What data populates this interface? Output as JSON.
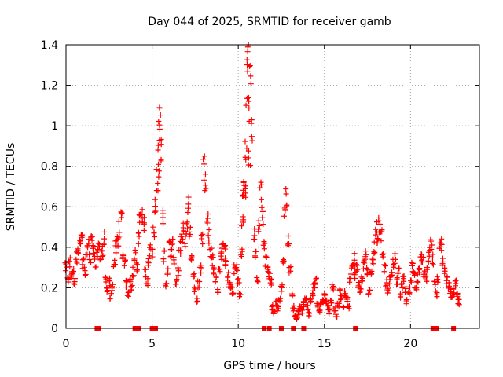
{
  "chart_data": {
    "type": "scatter",
    "title": "Day 044 of 2025, SRMTID for receiver gamb",
    "xlabel": "GPS time / hours",
    "ylabel": "SRMTID / TECUs",
    "xlim": [
      0,
      24
    ],
    "ylim": [
      0,
      1.4
    ],
    "xticks": [
      0,
      5,
      10,
      15,
      20
    ],
    "xtick_labels": [
      "0",
      "5",
      "10",
      "15",
      "20"
    ],
    "yticks": [
      0,
      0.2,
      0.4,
      0.6,
      0.8,
      1.0,
      1.2,
      1.4
    ],
    "ytick_labels": [
      "0",
      "0.2",
      "0.4",
      "0.6",
      "0.8",
      "1",
      "1.2",
      "1.4"
    ],
    "grid": true,
    "marker": "+",
    "color": "#ff0000",
    "series": [
      {
        "name": "SRMTID",
        "x": [
          0.0,
          0.1,
          0.2,
          0.3,
          0.4,
          0.5,
          0.6,
          0.7,
          0.8,
          0.9,
          1.0,
          1.1,
          1.2,
          1.3,
          1.4,
          1.5,
          1.6,
          1.7,
          1.8,
          1.9,
          2.0,
          2.1,
          2.2,
          2.3,
          2.4,
          2.5,
          2.6,
          2.7,
          2.8,
          2.9,
          3.0,
          3.1,
          3.2,
          3.3,
          3.4,
          3.5,
          3.6,
          3.7,
          3.8,
          3.9,
          4.0,
          4.1,
          4.2,
          4.3,
          4.4,
          4.5,
          4.6,
          4.7,
          4.8,
          4.9,
          5.0,
          5.1,
          5.2,
          5.3,
          5.35,
          5.4,
          5.45,
          5.5,
          5.6,
          5.7,
          5.8,
          5.9,
          6.0,
          6.1,
          6.2,
          6.3,
          6.4,
          6.5,
          6.6,
          6.7,
          6.8,
          6.9,
          7.0,
          7.1,
          7.2,
          7.3,
          7.4,
          7.5,
          7.6,
          7.7,
          7.8,
          7.9,
          8.0,
          8.1,
          8.2,
          8.3,
          8.4,
          8.5,
          8.6,
          8.7,
          8.8,
          8.9,
          9.0,
          9.1,
          9.2,
          9.3,
          9.4,
          9.5,
          9.6,
          9.7,
          9.8,
          9.9,
          10.0,
          10.1,
          10.2,
          10.25,
          10.3,
          10.35,
          10.4,
          10.45,
          10.5,
          10.55,
          10.6,
          10.65,
          10.7,
          10.8,
          10.9,
          11.0,
          11.1,
          11.2,
          11.3,
          11.4,
          11.5,
          11.6,
          11.7,
          11.8,
          11.9,
          12.0,
          12.1,
          12.2,
          12.3,
          12.4,
          12.5,
          12.6,
          12.7,
          12.8,
          12.9,
          13.0,
          13.1,
          13.2,
          13.3,
          13.4,
          13.5,
          13.6,
          13.7,
          13.8,
          13.9,
          14.0,
          14.1,
          14.2,
          14.3,
          14.4,
          14.5,
          14.6,
          14.7,
          14.8,
          14.9,
          15.0,
          15.1,
          15.2,
          15.3,
          15.4,
          15.5,
          15.6,
          15.7,
          15.8,
          15.9,
          16.0,
          16.1,
          16.2,
          16.3,
          16.4,
          16.5,
          16.6,
          16.7,
          16.8,
          16.9,
          17.0,
          17.1,
          17.2,
          17.3,
          17.4,
          17.5,
          17.6,
          17.7,
          17.8,
          17.9,
          18.0,
          18.1,
          18.2,
          18.3,
          18.4,
          18.5,
          18.6,
          18.7,
          18.8,
          18.9,
          19.0,
          19.1,
          19.2,
          19.3,
          19.4,
          19.5,
          19.6,
          19.7,
          19.8,
          19.9,
          20.0,
          20.1,
          20.2,
          20.3,
          20.4,
          20.5,
          20.6,
          20.7,
          20.8,
          20.9,
          21.0,
          21.1,
          21.2,
          21.3,
          21.4,
          21.5,
          21.6,
          21.7,
          21.8,
          21.9,
          22.0,
          22.1,
          22.2,
          22.3,
          22.4,
          22.5,
          22.6,
          22.7,
          22.8
        ],
        "y": [
          0.3,
          0.24,
          0.33,
          0.26,
          0.29,
          0.23,
          0.35,
          0.39,
          0.42,
          0.47,
          0.32,
          0.28,
          0.38,
          0.44,
          0.34,
          0.42,
          0.39,
          0.33,
          0.36,
          0.41,
          0.35,
          0.38,
          0.44,
          0.25,
          0.19,
          0.23,
          0.16,
          0.2,
          0.32,
          0.4,
          0.44,
          0.49,
          0.54,
          0.35,
          0.31,
          0.22,
          0.17,
          0.24,
          0.2,
          0.28,
          0.36,
          0.31,
          0.45,
          0.55,
          0.57,
          0.52,
          0.27,
          0.23,
          0.34,
          0.39,
          0.36,
          0.48,
          0.62,
          0.74,
          0.82,
          0.96,
          1.02,
          0.86,
          0.55,
          0.36,
          0.21,
          0.28,
          0.42,
          0.38,
          0.45,
          0.33,
          0.23,
          0.28,
          0.4,
          0.45,
          0.48,
          0.44,
          0.51,
          0.6,
          0.47,
          0.35,
          0.25,
          0.19,
          0.14,
          0.22,
          0.3,
          0.45,
          0.78,
          0.7,
          0.56,
          0.46,
          0.38,
          0.34,
          0.29,
          0.24,
          0.18,
          0.27,
          0.36,
          0.41,
          0.38,
          0.32,
          0.26,
          0.22,
          0.2,
          0.18,
          0.29,
          0.31,
          0.24,
          0.16,
          0.37,
          0.52,
          0.65,
          0.72,
          0.66,
          0.91,
          1.2,
          1.36,
          1.12,
          0.85,
          1.22,
          1.0,
          0.48,
          0.35,
          0.25,
          0.52,
          0.68,
          0.56,
          0.41,
          0.33,
          0.29,
          0.26,
          0.23,
          0.1,
          0.08,
          0.12,
          0.1,
          0.14,
          0.2,
          0.32,
          0.55,
          0.66,
          0.44,
          0.28,
          0.17,
          0.1,
          0.06,
          0.05,
          0.08,
          0.1,
          0.09,
          0.12,
          0.15,
          0.1,
          0.07,
          0.13,
          0.17,
          0.21,
          0.24,
          0.12,
          0.09,
          0.11,
          0.14,
          0.16,
          0.13,
          0.1,
          0.08,
          0.14,
          0.2,
          0.09,
          0.06,
          0.12,
          0.18,
          0.15,
          0.11,
          0.17,
          0.14,
          0.1,
          0.25,
          0.29,
          0.34,
          0.27,
          0.3,
          0.22,
          0.19,
          0.25,
          0.31,
          0.36,
          0.28,
          0.18,
          0.26,
          0.34,
          0.4,
          0.49,
          0.44,
          0.52,
          0.46,
          0.35,
          0.29,
          0.22,
          0.19,
          0.24,
          0.27,
          0.32,
          0.34,
          0.23,
          0.28,
          0.16,
          0.21,
          0.24,
          0.19,
          0.13,
          0.17,
          0.22,
          0.3,
          0.27,
          0.2,
          0.25,
          0.29,
          0.35,
          0.33,
          0.26,
          0.24,
          0.31,
          0.38,
          0.42,
          0.34,
          0.22,
          0.17,
          0.25,
          0.39,
          0.42,
          0.33,
          0.28,
          0.24,
          0.21,
          0.18,
          0.15,
          0.19,
          0.22,
          0.16,
          0.13
        ],
        "markers_at_zero": [
          1.8,
          1.9,
          4.0,
          4.2,
          5.0,
          5.1,
          5.2,
          11.5,
          11.8,
          12.5,
          13.2,
          13.8,
          16.8,
          21.3,
          21.5,
          22.5
        ]
      }
    ]
  }
}
